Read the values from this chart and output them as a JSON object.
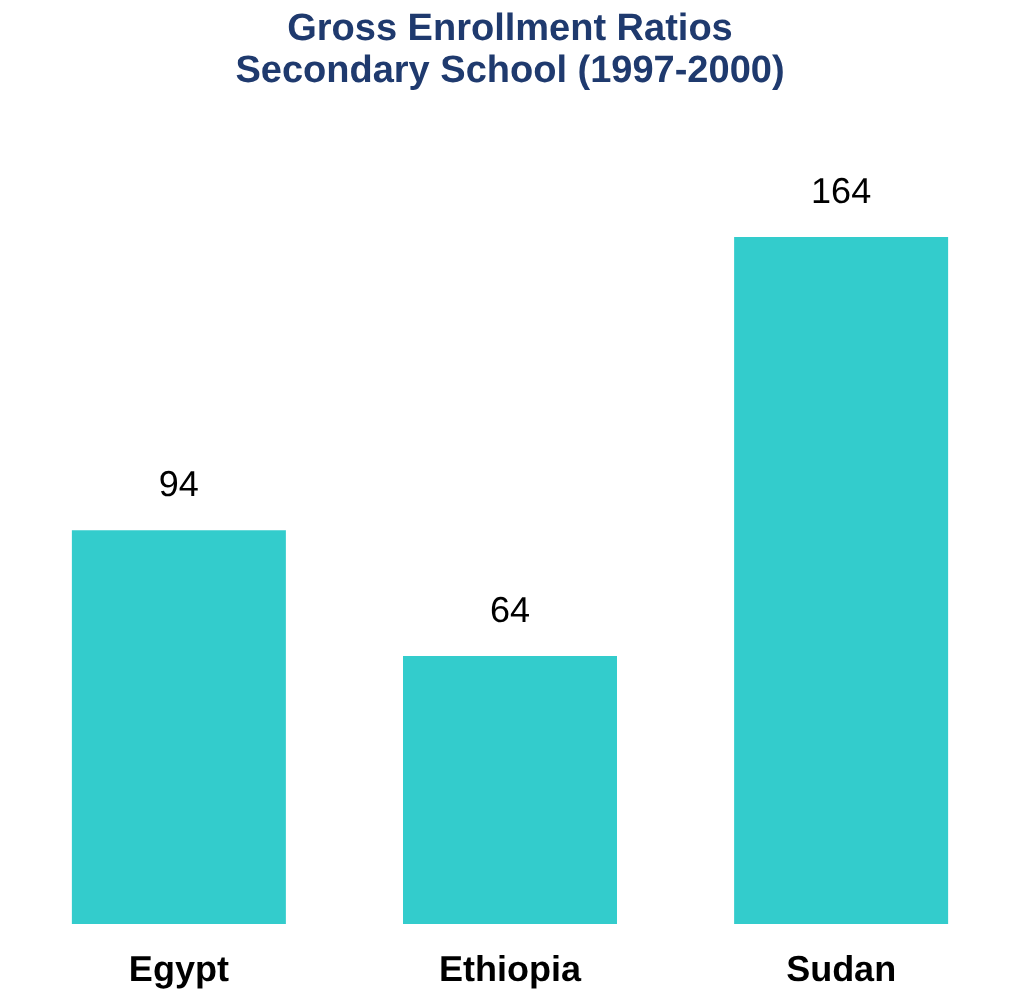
{
  "chart_data": {
    "type": "bar",
    "title": [
      "Gross Enrollment Ratios",
      "Secondary School (1997-2000)"
    ],
    "categories": [
      "Egypt",
      "Ethiopia",
      "Sudan"
    ],
    "values": [
      94,
      64,
      164
    ],
    "color": "#33cccc",
    "data_labels": true,
    "grid": false
  }
}
